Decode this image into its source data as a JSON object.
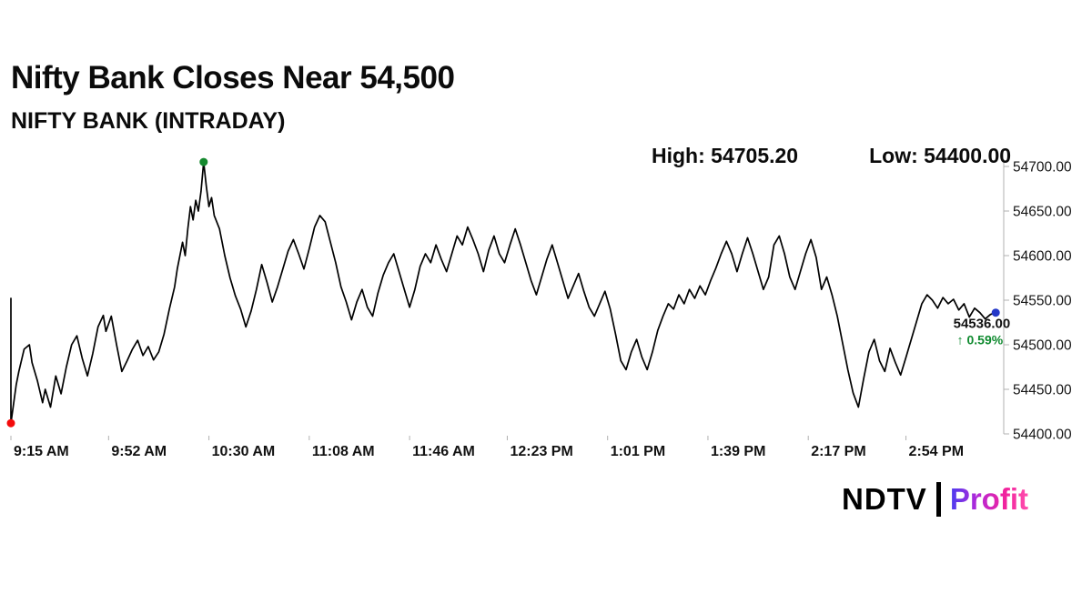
{
  "header": {
    "title": "Nifty Bank Closes Near 54,500",
    "subtitle": "NIFTY BANK (INTRADAY)"
  },
  "stats": {
    "high": "High: 54705.20",
    "low": "Low: 54400.00"
  },
  "last_quote": {
    "price": "54536.00",
    "change": "↑ 0.59%",
    "change_color": "#0f8a2f"
  },
  "branding": {
    "ndtv": "NDTV",
    "separator": "|",
    "profit": "Profit"
  },
  "chart_data": {
    "type": "line",
    "title": "NIFTY BANK (INTRADAY)",
    "x_unit": "minutes since 9:15 AM",
    "x_tick_labels": [
      "9:15 AM",
      "9:52 AM",
      "10:30 AM",
      "11:08 AM",
      "11:46 AM",
      "12:23 PM",
      "1:01 PM",
      "1:39 PM",
      "2:17 PM",
      "2:54 PM"
    ],
    "x_tick_minutes": [
      0,
      37,
      75,
      113,
      151,
      188,
      226,
      264,
      302,
      339
    ],
    "xlim": [
      0,
      375
    ],
    "ylim": [
      54400,
      54700
    ],
    "y_ticks": [
      54400,
      54450,
      54500,
      54550,
      54600,
      54650,
      54700
    ],
    "y_tick_labels": [
      "54400.00",
      "54450.00",
      "54500.00",
      "54550.00",
      "54600.00",
      "54650.00",
      "54700.00"
    ],
    "high": 54705.2,
    "low": 54400.0,
    "close": 54536.0,
    "change_pct": 0.59,
    "line_color": "#000000",
    "axis_color": "#b0b0b0",
    "markers": {
      "high_color": "#15892e",
      "low_color": "#f40b0b",
      "last_color": "#2438c8"
    },
    "series": [
      {
        "name": "NIFTY BANK",
        "points": [
          [
            0,
            54552
          ],
          [
            0,
            54412
          ],
          [
            2,
            54455
          ],
          [
            3,
            54470
          ],
          [
            5,
            54495
          ],
          [
            7,
            54500
          ],
          [
            8,
            54480
          ],
          [
            10,
            54460
          ],
          [
            12,
            54435
          ],
          [
            13,
            54450
          ],
          [
            15,
            54430
          ],
          [
            17,
            54465
          ],
          [
            19,
            54445
          ],
          [
            21,
            54475
          ],
          [
            23,
            54500
          ],
          [
            25,
            54510
          ],
          [
            27,
            54485
          ],
          [
            29,
            54465
          ],
          [
            31,
            54490
          ],
          [
            33,
            54520
          ],
          [
            35,
            54533
          ],
          [
            36,
            54515
          ],
          [
            38,
            54532
          ],
          [
            40,
            54500
          ],
          [
            42,
            54470
          ],
          [
            44,
            54482
          ],
          [
            46,
            54495
          ],
          [
            48,
            54505
          ],
          [
            50,
            54488
          ],
          [
            52,
            54498
          ],
          [
            54,
            54483
          ],
          [
            56,
            54492
          ],
          [
            58,
            54512
          ],
          [
            60,
            54540
          ],
          [
            62,
            54565
          ],
          [
            63,
            54585
          ],
          [
            65,
            54615
          ],
          [
            66,
            54600
          ],
          [
            67,
            54630
          ],
          [
            68,
            54655
          ],
          [
            69,
            54640
          ],
          [
            70,
            54662
          ],
          [
            71,
            54650
          ],
          [
            72,
            54672
          ],
          [
            73,
            54705
          ],
          [
            74,
            54678
          ],
          [
            75,
            54655
          ],
          [
            76,
            54665
          ],
          [
            77,
            54645
          ],
          [
            79,
            54630
          ],
          [
            81,
            54600
          ],
          [
            83,
            54575
          ],
          [
            85,
            54555
          ],
          [
            87,
            54540
          ],
          [
            89,
            54520
          ],
          [
            91,
            54538
          ],
          [
            93,
            54562
          ],
          [
            95,
            54590
          ],
          [
            97,
            54570
          ],
          [
            99,
            54548
          ],
          [
            101,
            54565
          ],
          [
            103,
            54585
          ],
          [
            105,
            54605
          ],
          [
            107,
            54618
          ],
          [
            109,
            54602
          ],
          [
            111,
            54585
          ],
          [
            113,
            54608
          ],
          [
            115,
            54632
          ],
          [
            117,
            54645
          ],
          [
            119,
            54638
          ],
          [
            121,
            54615
          ],
          [
            123,
            54592
          ],
          [
            125,
            54565
          ],
          [
            127,
            54548
          ],
          [
            129,
            54528
          ],
          [
            131,
            54548
          ],
          [
            133,
            54562
          ],
          [
            135,
            54542
          ],
          [
            137,
            54532
          ],
          [
            139,
            54558
          ],
          [
            141,
            54578
          ],
          [
            143,
            54592
          ],
          [
            145,
            54602
          ],
          [
            147,
            54582
          ],
          [
            149,
            54562
          ],
          [
            151,
            54542
          ],
          [
            153,
            54562
          ],
          [
            155,
            54588
          ],
          [
            157,
            54602
          ],
          [
            159,
            54592
          ],
          [
            161,
            54612
          ],
          [
            163,
            54596
          ],
          [
            165,
            54582
          ],
          [
            167,
            54602
          ],
          [
            169,
            54622
          ],
          [
            171,
            54612
          ],
          [
            173,
            54632
          ],
          [
            175,
            54618
          ],
          [
            177,
            54602
          ],
          [
            179,
            54582
          ],
          [
            181,
            54606
          ],
          [
            183,
            54622
          ],
          [
            185,
            54602
          ],
          [
            187,
            54592
          ],
          [
            189,
            54612
          ],
          [
            191,
            54630
          ],
          [
            193,
            54612
          ],
          [
            195,
            54592
          ],
          [
            197,
            54572
          ],
          [
            199,
            54556
          ],
          [
            201,
            54576
          ],
          [
            203,
            54596
          ],
          [
            205,
            54612
          ],
          [
            207,
            54592
          ],
          [
            209,
            54572
          ],
          [
            211,
            54552
          ],
          [
            213,
            54566
          ],
          [
            215,
            54580
          ],
          [
            217,
            54560
          ],
          [
            219,
            54542
          ],
          [
            221,
            54532
          ],
          [
            223,
            54546
          ],
          [
            225,
            54560
          ],
          [
            227,
            54540
          ],
          [
            229,
            54512
          ],
          [
            231,
            54482
          ],
          [
            233,
            54472
          ],
          [
            235,
            54492
          ],
          [
            237,
            54506
          ],
          [
            239,
            54486
          ],
          [
            241,
            54472
          ],
          [
            243,
            54492
          ],
          [
            245,
            54516
          ],
          [
            247,
            54532
          ],
          [
            249,
            54546
          ],
          [
            251,
            54540
          ],
          [
            253,
            54556
          ],
          [
            255,
            54546
          ],
          [
            257,
            54562
          ],
          [
            259,
            54552
          ],
          [
            261,
            54566
          ],
          [
            263,
            54556
          ],
          [
            265,
            54572
          ],
          [
            267,
            54586
          ],
          [
            269,
            54602
          ],
          [
            271,
            54616
          ],
          [
            273,
            54602
          ],
          [
            275,
            54582
          ],
          [
            277,
            54602
          ],
          [
            279,
            54620
          ],
          [
            281,
            54602
          ],
          [
            283,
            54582
          ],
          [
            285,
            54562
          ],
          [
            287,
            54576
          ],
          [
            289,
            54612
          ],
          [
            291,
            54622
          ],
          [
            293,
            54602
          ],
          [
            295,
            54576
          ],
          [
            297,
            54562
          ],
          [
            299,
            54582
          ],
          [
            301,
            54602
          ],
          [
            303,
            54618
          ],
          [
            305,
            54598
          ],
          [
            307,
            54562
          ],
          [
            309,
            54576
          ],
          [
            311,
            54556
          ],
          [
            313,
            54532
          ],
          [
            315,
            54502
          ],
          [
            317,
            54472
          ],
          [
            319,
            54446
          ],
          [
            321,
            54430
          ],
          [
            323,
            54462
          ],
          [
            325,
            54492
          ],
          [
            327,
            54506
          ],
          [
            329,
            54482
          ],
          [
            331,
            54470
          ],
          [
            333,
            54496
          ],
          [
            335,
            54480
          ],
          [
            337,
            54466
          ],
          [
            339,
            54486
          ],
          [
            341,
            54506
          ],
          [
            343,
            54526
          ],
          [
            345,
            54546
          ],
          [
            347,
            54556
          ],
          [
            349,
            54550
          ],
          [
            351,
            54541
          ],
          [
            353,
            54553
          ],
          [
            355,
            54546
          ],
          [
            357,
            54551
          ],
          [
            359,
            54539
          ],
          [
            361,
            54546
          ],
          [
            363,
            54531
          ],
          [
            365,
            54541
          ],
          [
            367,
            54536
          ],
          [
            369,
            54529
          ],
          [
            371,
            54534
          ],
          [
            373,
            54536
          ]
        ]
      }
    ]
  }
}
